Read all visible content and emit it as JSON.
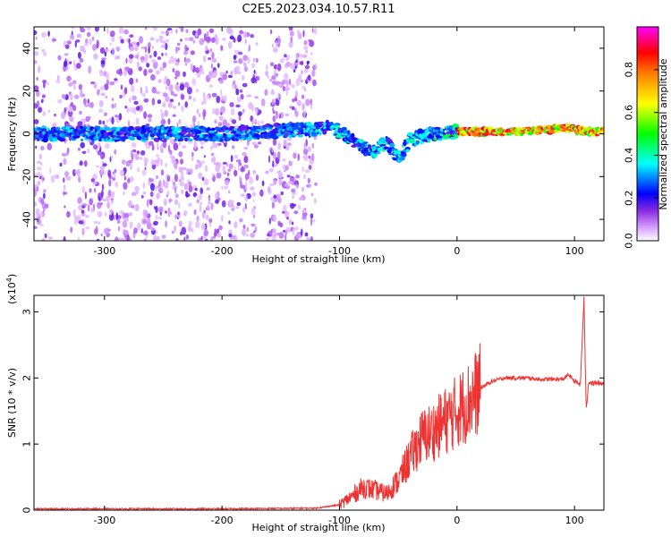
{
  "title": "C2E5.2023.034.10.57.R11",
  "colorbar": {
    "label": "Normalized spectral amplitude",
    "ticks": [
      "0.0",
      "0.2",
      "0.4",
      "0.6",
      "0.8"
    ],
    "tick_values": [
      0.0,
      0.2,
      0.4,
      0.6,
      0.8
    ],
    "range": [
      0,
      1
    ],
    "colors": [
      "#ffffff",
      "#9b30ff",
      "#0000ff",
      "#00ffff",
      "#00ff00",
      "#ffff00",
      "#ff8000",
      "#ff0000",
      "#ff00ff"
    ]
  },
  "chart_data": [
    {
      "type": "heatmap",
      "xlabel": "Height of straight line (km)",
      "ylabel": "Frequency (Hz)",
      "xlim": [
        -360,
        125
      ],
      "ylim": [
        -50,
        50
      ],
      "xticks": [
        -300,
        -200,
        -100,
        0,
        100
      ],
      "xtick_labels": [
        "-300",
        "-200",
        "-100",
        "0",
        "100"
      ],
      "yticks": [
        -40,
        -20,
        0,
        20,
        40
      ],
      "ytick_labels": [
        "-40",
        "-20",
        "0",
        "20",
        "40"
      ],
      "trace": {
        "x": [
          -360,
          -300,
          -200,
          -130,
          -110,
          -100,
          -90,
          -80,
          -70,
          -60,
          -50,
          -40,
          -30,
          -20,
          -10,
          0,
          20,
          50,
          80,
          90,
          100,
          110,
          125
        ],
        "y": [
          0,
          0,
          0,
          2,
          3,
          1,
          -3,
          -6,
          -8,
          -4,
          -12,
          -3,
          -1,
          0,
          0,
          1,
          1,
          1,
          2,
          3,
          2,
          1,
          1
        ]
      },
      "noise_region_xlim": [
        -360,
        -120
      ]
    },
    {
      "type": "line",
      "xlabel": "Height of straight line (km)",
      "ylabel": "SNR (10 * v/v)",
      "yscale_label": "(x10",
      "yscale_exp": "4",
      "yscale_suffix": ")",
      "xlim": [
        -360,
        125
      ],
      "ylim": [
        0,
        3.25
      ],
      "xticks": [
        -300,
        -200,
        -100,
        0,
        100
      ],
      "xtick_labels": [
        "-300",
        "-200",
        "-100",
        "0",
        "100"
      ],
      "yticks": [
        0,
        1,
        2,
        3
      ],
      "ytick_labels": [
        "0",
        "1",
        "2",
        "3"
      ],
      "color": "#ee3333",
      "series": [
        {
          "x": [
            -360,
            -300,
            -200,
            -120,
            -100,
            -90,
            -80,
            -70,
            -60,
            -50,
            -40,
            -30,
            -20,
            -10,
            0,
            10,
            20,
            30,
            40,
            50,
            60,
            70,
            80,
            90,
            95,
            100,
            105,
            108,
            110,
            112,
            115,
            120,
            125
          ],
          "y": [
            0.02,
            0.02,
            0.02,
            0.03,
            0.08,
            0.2,
            0.35,
            0.3,
            0.25,
            0.45,
            0.8,
            1.1,
            1.2,
            1.35,
            1.5,
            1.65,
            1.85,
            1.95,
            2.0,
            2.0,
            2.0,
            1.98,
            1.98,
            1.98,
            2.05,
            1.95,
            1.9,
            3.2,
            1.5,
            1.95,
            1.92,
            1.92,
            1.92
          ]
        }
      ]
    }
  ]
}
